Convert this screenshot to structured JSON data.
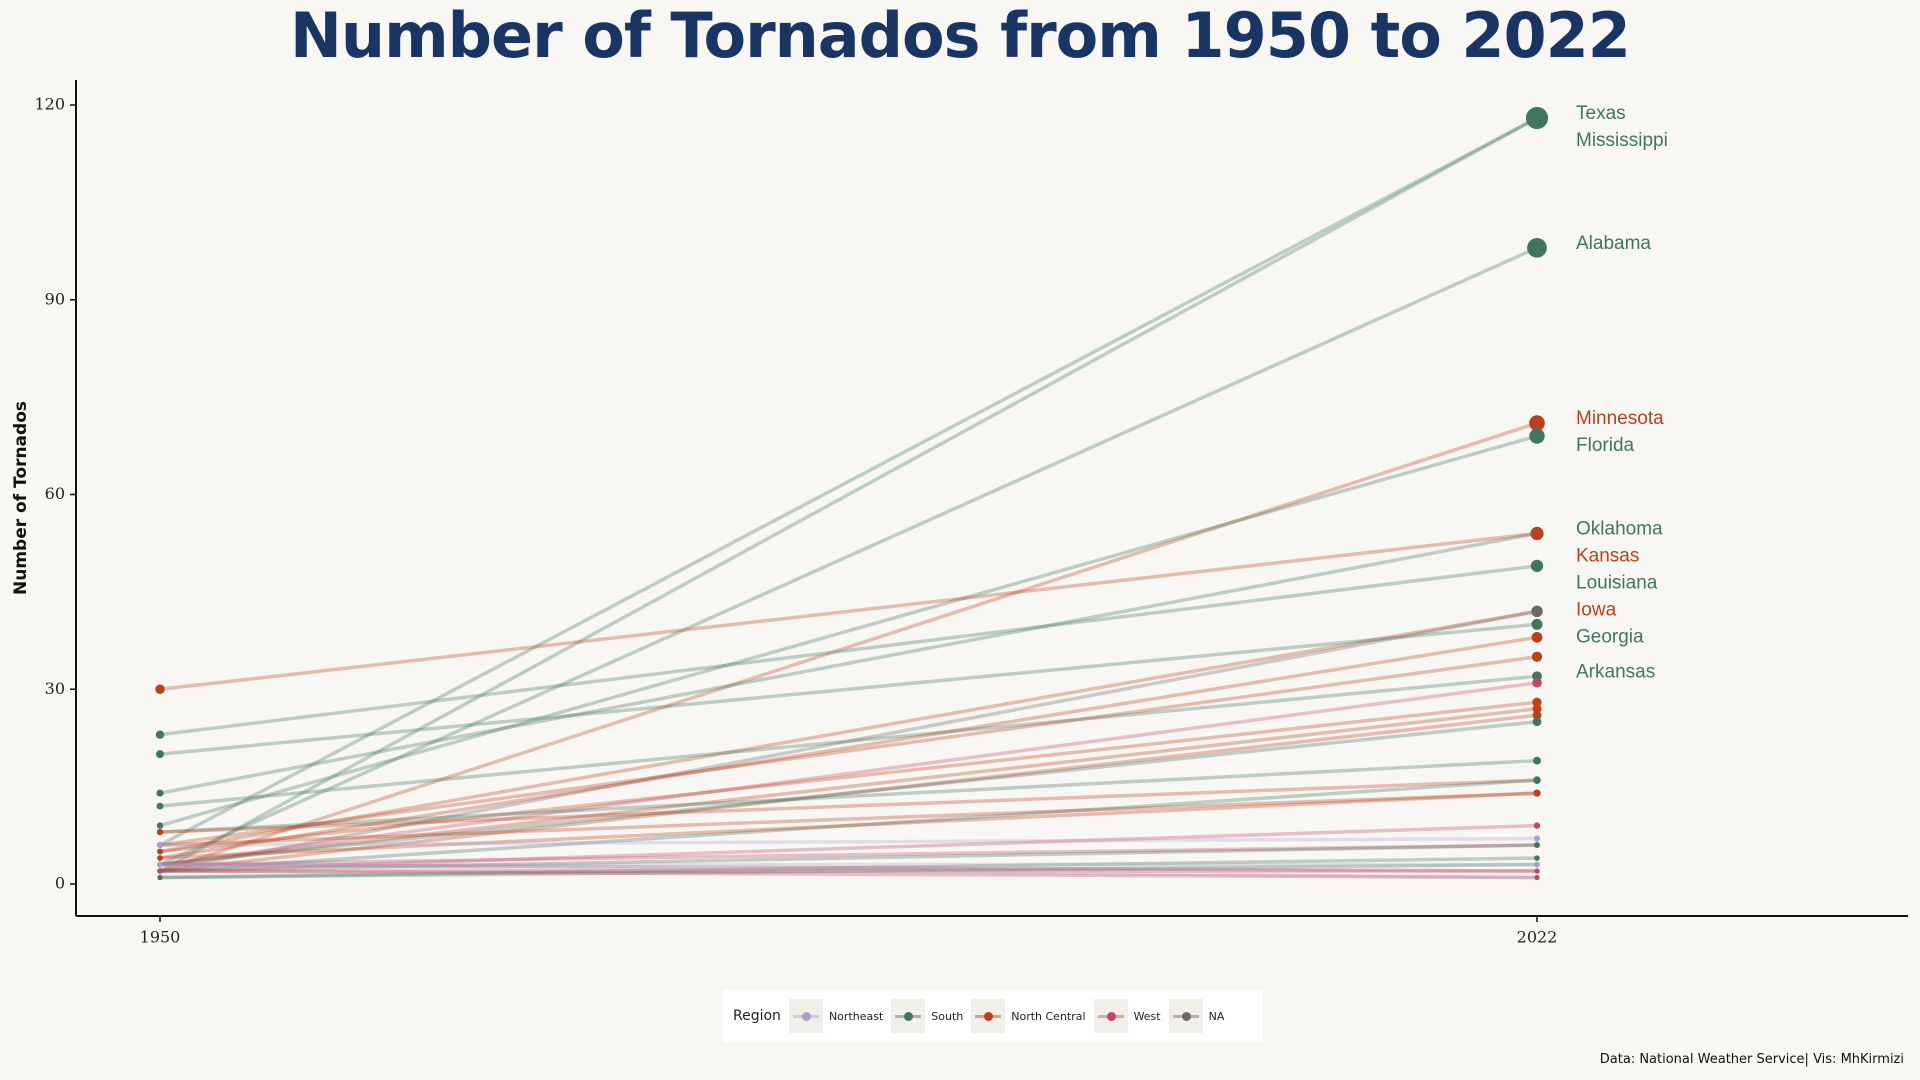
{
  "colors": {
    "Northeast": "#a99fcc",
    "South": "#41755f",
    "North Central": "#b8411f",
    "West": "#c0476b",
    "NA": "#6b6b66"
  },
  "chart_data": {
    "type": "line",
    "title": "Number of Tornados  from 1950 to 2022",
    "ylabel": "Number of Tornados",
    "xlabel": "",
    "x": [
      1950,
      2022
    ],
    "x_tick_labels": [
      "1950",
      "2022"
    ],
    "ylim": [
      -4,
      124
    ],
    "y_ticks": [
      0,
      30,
      60,
      90,
      120
    ],
    "grid": false,
    "legend_title": "Region",
    "legend_position": "bottom",
    "legend": [
      "Northeast",
      "South",
      "North Central",
      "West",
      "NA"
    ],
    "caption": "Data: National Weather Service| Vis: MhKirmizi",
    "series": [
      {
        "name": "Texas",
        "region": "South",
        "values": [
          6,
          118
        ],
        "labeled": true
      },
      {
        "name": "Mississippi",
        "region": "South",
        "values": [
          2,
          118
        ],
        "labeled": true
      },
      {
        "name": "Alabama",
        "region": "South",
        "values": [
          3,
          98
        ],
        "labeled": true
      },
      {
        "name": "Minnesota",
        "region": "North Central",
        "values": [
          2,
          71
        ],
        "labeled": true
      },
      {
        "name": "Florida",
        "region": "South",
        "values": [
          9,
          69
        ],
        "labeled": true
      },
      {
        "name": "Oklahoma",
        "region": "South",
        "values": [
          14,
          54
        ],
        "labeled": true
      },
      {
        "name": "Kansas",
        "region": "North Central",
        "values": [
          30,
          54
        ],
        "labeled": true
      },
      {
        "name": "Louisiana",
        "region": "South",
        "values": [
          23,
          49
        ],
        "labeled": true
      },
      {
        "name": "Iowa",
        "region": "North Central",
        "values": [
          5,
          42
        ],
        "labeled": true
      },
      {
        "name": "Georgia",
        "region": "South",
        "values": [
          20,
          40
        ],
        "labeled": true
      },
      {
        "name": "Arkansas",
        "region": "South",
        "values": [
          12,
          32
        ],
        "labeled": true
      },
      {
        "name": "",
        "region": "NA",
        "values": [
          2,
          42
        ],
        "labeled": false
      },
      {
        "name": "",
        "region": "North Central",
        "values": [
          4,
          38
        ],
        "labeled": false
      },
      {
        "name": "",
        "region": "North Central",
        "values": [
          6,
          35
        ],
        "labeled": false
      },
      {
        "name": "",
        "region": "West",
        "values": [
          3,
          31
        ],
        "labeled": false
      },
      {
        "name": "",
        "region": "North Central",
        "values": [
          5,
          28
        ],
        "labeled": false
      },
      {
        "name": "",
        "region": "North Central",
        "values": [
          3,
          27
        ],
        "labeled": false
      },
      {
        "name": "",
        "region": "North Central",
        "values": [
          2,
          26
        ],
        "labeled": false
      },
      {
        "name": "",
        "region": "South",
        "values": [
          3,
          25
        ],
        "labeled": false
      },
      {
        "name": "",
        "region": "South",
        "values": [
          8,
          19
        ],
        "labeled": false
      },
      {
        "name": "",
        "region": "North Central",
        "values": [
          8,
          16
        ],
        "labeled": false
      },
      {
        "name": "",
        "region": "South",
        "values": [
          2,
          16
        ],
        "labeled": false
      },
      {
        "name": "",
        "region": "North Central",
        "values": [
          6,
          14
        ],
        "labeled": false
      },
      {
        "name": "",
        "region": "North Central",
        "values": [
          4,
          14
        ],
        "labeled": false
      },
      {
        "name": "",
        "region": "West",
        "values": [
          2,
          9
        ],
        "labeled": false
      },
      {
        "name": "",
        "region": "Northeast",
        "values": [
          6,
          7
        ],
        "labeled": false
      },
      {
        "name": "",
        "region": "West",
        "values": [
          3,
          6
        ],
        "labeled": false
      },
      {
        "name": "",
        "region": "South",
        "values": [
          2,
          6
        ],
        "labeled": false
      },
      {
        "name": "",
        "region": "South",
        "values": [
          1,
          4
        ],
        "labeled": false
      },
      {
        "name": "",
        "region": "South",
        "values": [
          1,
          3
        ],
        "labeled": false
      },
      {
        "name": "",
        "region": "West",
        "values": [
          3,
          2
        ],
        "labeled": false
      },
      {
        "name": "",
        "region": "Northeast",
        "values": [
          3,
          3
        ],
        "labeled": false
      },
      {
        "name": "",
        "region": "West",
        "values": [
          2,
          2
        ],
        "labeled": false
      },
      {
        "name": "",
        "region": "Northeast",
        "values": [
          3,
          1
        ],
        "labeled": false
      },
      {
        "name": "",
        "region": "West",
        "values": [
          2,
          1
        ],
        "labeled": false
      }
    ]
  }
}
